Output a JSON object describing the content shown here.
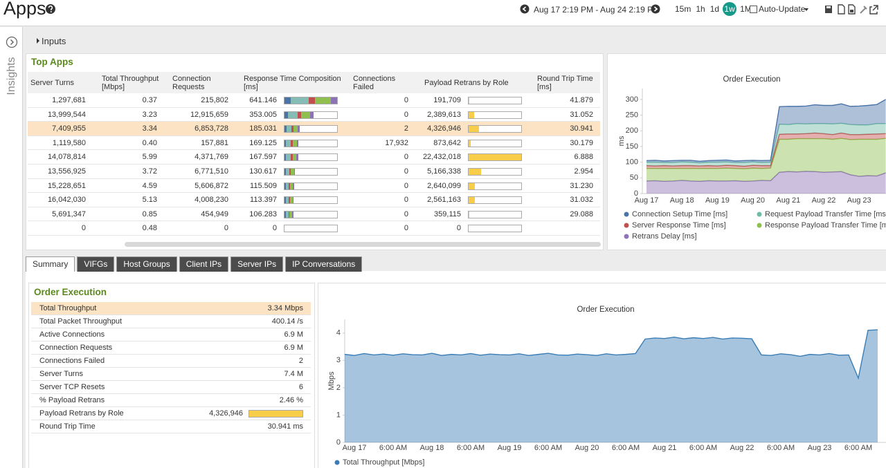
{
  "header": {
    "title": "Apps",
    "time_range": "Aug 17 2:19 PM - Aug 24 2:19 PM",
    "ranges": [
      "15m",
      "1h",
      "1d",
      "1w",
      "1M"
    ],
    "active_range": "1w",
    "auto_update": "Auto-Update"
  },
  "sidebar": {
    "label": "Insights"
  },
  "inputs": {
    "label": "Inputs"
  },
  "top_apps": {
    "title": "Top Apps",
    "columns": [
      "Server Turns",
      "Total Throughput [Mbps]",
      "Connection Requests",
      "Response Time Composition [ms]",
      "Connections Failed",
      "Payload Retrans by Role",
      "Round Trip Time [ms]"
    ],
    "selected_row": 2,
    "rows": [
      [
        "1,297,681",
        "0.37",
        "215,802",
        "641.146",
        "0",
        "191,709",
        "41.879"
      ],
      [
        "13,999,544",
        "3.23",
        "12,915,659",
        "353.005",
        "0",
        "2,389,613",
        "31.052"
      ],
      [
        "7,409,955",
        "3.34",
        "6,853,728",
        "185.031",
        "2",
        "4,326,946",
        "30.941"
      ],
      [
        "1,119,580",
        "0.40",
        "157,881",
        "169.125",
        "17,932",
        "873,642",
        "30.179"
      ],
      [
        "14,078,814",
        "5.99",
        "4,371,769",
        "167.597",
        "0",
        "22,432,018",
        "6.888"
      ],
      [
        "13,556,925",
        "3.72",
        "6,771,510",
        "130.617",
        "0",
        "5,166,338",
        "2.954"
      ],
      [
        "15,228,651",
        "4.59",
        "5,606,872",
        "115.509",
        "0",
        "2,640,099",
        "31.230"
      ],
      [
        "16,042,030",
        "5.13",
        "4,008,230",
        "113.397",
        "0",
        "2,561,163",
        "31.032"
      ],
      [
        "5,691,347",
        "0.85",
        "454,949",
        "106.283",
        "0",
        "359,115",
        "29.088"
      ],
      [
        "0",
        "0.48",
        "0",
        "0",
        "0",
        "0",
        null
      ]
    ]
  },
  "tabs": {
    "items": [
      "Summary",
      "VIFGs",
      "Host Groups",
      "Client IPs",
      "Server IPs",
      "IP Conversations"
    ],
    "active": "Summary"
  },
  "summary": {
    "title": "Order Execution",
    "selected_row": 0,
    "rows": [
      {
        "label": "Total Throughput",
        "value": "3.34 Mbps"
      },
      {
        "label": "Total Packet Throughput",
        "value": "400.14 /s"
      },
      {
        "label": "Active Connections",
        "value": "6.9 M"
      },
      {
        "label": "Connection Requests",
        "value": "6.9 M"
      },
      {
        "label": "Connections Failed",
        "value": "2"
      },
      {
        "label": "Server Turns",
        "value": "7.4 M"
      },
      {
        "label": "Server TCP Resets",
        "value": "6"
      },
      {
        "label": "% Payload Retrans",
        "value": "2.46 %"
      },
      {
        "label": "Payload Retrans by Role",
        "value": "4,326,946",
        "bar": true
      },
      {
        "label": "Round Trip Time",
        "value": "30.941 ms"
      }
    ]
  },
  "chart_data": [
    {
      "type": "area",
      "stacked": true,
      "title": "Order Execution",
      "ylabel": "ms",
      "grid": false,
      "categories": [
        "Aug 17",
        null,
        null,
        null,
        "Aug 18",
        null,
        null,
        null,
        "Aug 19",
        null,
        null,
        null,
        "Aug 20",
        null,
        null,
        null,
        "Aug 21",
        null,
        null,
        null,
        "Aug 22",
        null,
        null,
        null,
        "Aug 23",
        null,
        null,
        null
      ],
      "ylim": [
        0,
        335
      ],
      "yticks": [
        0,
        50,
        100,
        150,
        200,
        250,
        300
      ],
      "series": [
        {
          "name": "Connection Setup Time [ms]",
          "color": "#4a74a8",
          "values": [
            5,
            6,
            5,
            6,
            5,
            6,
            5,
            5,
            6,
            6,
            5,
            6,
            5,
            6,
            6,
            56,
            58,
            55,
            57,
            60,
            58,
            59,
            62,
            58,
            60,
            62,
            61,
            77
          ]
        },
        {
          "name": "Request Payload Transfer Time [ms]",
          "color": "#6fbba5",
          "values": [
            11,
            12,
            10,
            11,
            12,
            11,
            10,
            11,
            12,
            11,
            10,
            12,
            11,
            10,
            11,
            32,
            30,
            33,
            31,
            30,
            32,
            34,
            31,
            32,
            31,
            30,
            33,
            32
          ]
        },
        {
          "name": "Server Response Time [ms]",
          "color": "#c0504d",
          "values": [
            9,
            8,
            9,
            8,
            9,
            9,
            8,
            9,
            8,
            9,
            9,
            8,
            9,
            9,
            8,
            16,
            17,
            15,
            16,
            18,
            16,
            15,
            17,
            16,
            15,
            16,
            17,
            15
          ]
        },
        {
          "name": "Response Payload Transfer Time [ms]",
          "color": "#8fbf4f",
          "values": [
            40,
            39,
            41,
            40,
            38,
            40,
            41,
            39,
            40,
            41,
            39,
            40,
            41,
            38,
            40,
            105,
            103,
            106,
            104,
            105,
            107,
            104,
            106,
            112,
            118,
            116,
            117,
            110
          ]
        },
        {
          "name": "Retrans Delay [ms]",
          "color": "#8e72b6",
          "values": [
            40,
            41,
            39,
            40,
            42,
            40,
            39,
            41,
            40,
            40,
            41,
            39,
            40,
            42,
            41,
            68,
            70,
            69,
            71,
            70,
            68,
            69,
            70,
            60,
            55,
            57,
            56,
            66
          ]
        }
      ]
    },
    {
      "type": "area",
      "stacked": false,
      "title": "Order Execution",
      "ylabel": "Mbps",
      "grid": false,
      "categories": [
        null,
        "Aug 17",
        null,
        null,
        null,
        "6:00 AM",
        null,
        null,
        null,
        "Aug 18",
        null,
        null,
        null,
        "6:00 AM",
        null,
        null,
        null,
        "Aug 19",
        null,
        null,
        null,
        "6:00 AM",
        null,
        null,
        null,
        "Aug 20",
        null,
        null,
        null,
        "6:00 AM",
        null,
        null,
        null,
        "Aug 21",
        null,
        null,
        null,
        "6:00 AM",
        null,
        null,
        null,
        "Aug 22",
        null,
        null,
        null,
        "6:00 AM",
        null,
        null,
        null,
        "Aug 23",
        null,
        null,
        null,
        "6:00 AM",
        null,
        null
      ],
      "ylim": [
        0,
        4.5
      ],
      "yticks": [
        0,
        1,
        2,
        3,
        4
      ],
      "series": [
        {
          "name": "Total Throughput [Mbps]",
          "color": "#3a7db5",
          "values": [
            3.22,
            3.18,
            3.25,
            3.2,
            3.23,
            3.19,
            3.24,
            3.21,
            3.2,
            3.26,
            3.18,
            3.22,
            3.2,
            3.25,
            3.19,
            3.23,
            3.21,
            3.2,
            3.24,
            3.18,
            3.22,
            3.26,
            3.2,
            3.19,
            3.23,
            3.21,
            3.18,
            3.24,
            3.2,
            3.22,
            3.25,
            3.78,
            3.82,
            3.8,
            3.85,
            3.79,
            3.83,
            3.8,
            3.84,
            3.78,
            3.82,
            3.81,
            3.79,
            3.2,
            3.18,
            3.24,
            3.21,
            3.15,
            3.22,
            3.2,
            3.25,
            3.19,
            3.2,
            2.35,
            4.1,
            4.12
          ]
        }
      ]
    }
  ]
}
